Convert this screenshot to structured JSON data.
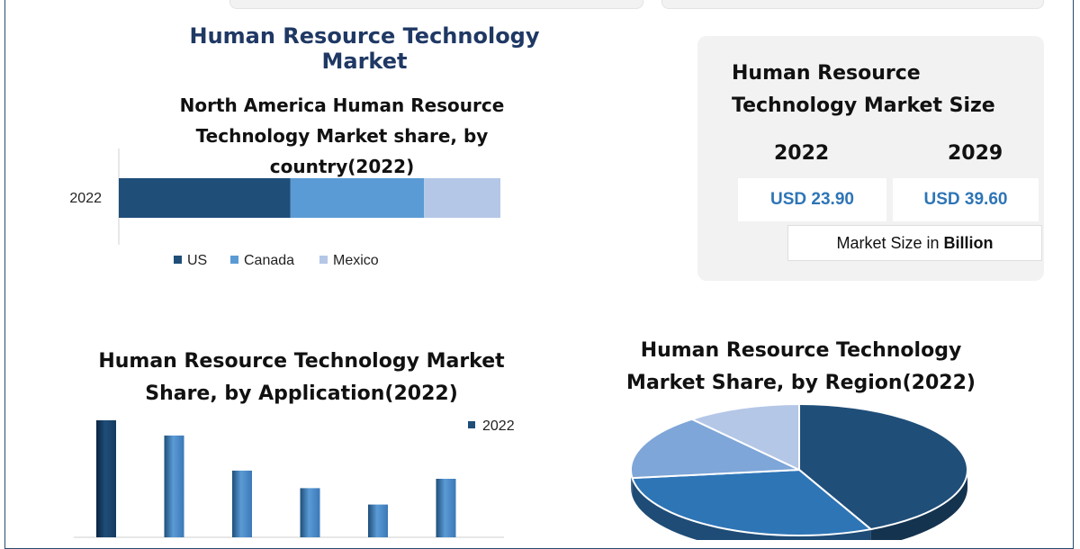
{
  "header": {
    "title": "Human Resource Technology Market"
  },
  "market_size": {
    "title": "Human Resource Technology Market Size",
    "year_a": "2022",
    "year_b": "2029",
    "value_a": "USD 23.90",
    "value_b": "USD 39.60",
    "unit_prefix": "Market Size in ",
    "unit_bold": "Billion"
  },
  "colors": {
    "dark": "#1f4e79",
    "mid": "#5b9bd5",
    "light": "#b4c7e7",
    "title": "#1f3864"
  },
  "chart_data": [
    {
      "type": "bar",
      "orientation": "horizontal-stacked",
      "title": "North America  Human Resource Technology Market share, by country(2022)",
      "title_lines": [
        "North America  Human Resource",
        "Technology Market share, by",
        "country(2022)"
      ],
      "categories": [
        "2022"
      ],
      "series": [
        {
          "name": "US",
          "values": [
            0.45
          ],
          "color": "#1f4e79"
        },
        {
          "name": "Canada",
          "values": [
            0.35
          ],
          "color": "#5b9bd5"
        },
        {
          "name": "Mexico",
          "values": [
            0.2
          ],
          "color": "#b4c7e7"
        }
      ],
      "legend": "bottom"
    },
    {
      "type": "bar",
      "title": "Human Resource Technology Market Share, by Application(2022)",
      "title_lines": [
        "Human Resource Technology Market",
        "Share, by Application(2022)"
      ],
      "series": [
        {
          "name": "2022",
          "values": [
            100,
            87,
            57,
            42,
            28,
            50
          ]
        }
      ],
      "legend": "top-right"
    },
    {
      "type": "pie",
      "title": "Human Resource Technology Market Share, by Region(2022)",
      "title_lines": [
        "Human Resource Technology",
        "Market Share, by Region(2022)"
      ],
      "values": [
        43,
        30,
        16,
        11
      ],
      "colors": [
        "#1f4e79",
        "#2e75b6",
        "#7ea6d8",
        "#b4c7e7"
      ]
    }
  ]
}
